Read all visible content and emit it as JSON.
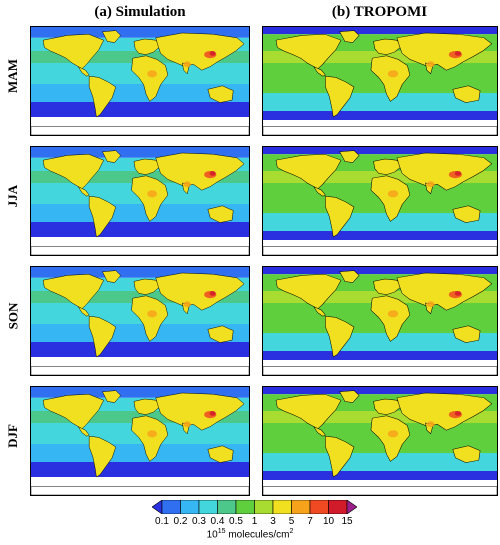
{
  "columns": {
    "a": "(a) Simulation",
    "b": "(b) TROPOMI"
  },
  "rows": [
    {
      "season": "MAM"
    },
    {
      "season": "JJA"
    },
    {
      "season": "SON"
    },
    {
      "season": "DJF"
    }
  ],
  "colorbar": {
    "ticks": [
      "0.1",
      "0.2",
      "0.3",
      "0.4",
      "0.5",
      "1",
      "3",
      "5",
      "7",
      "10",
      "15"
    ],
    "colors": [
      "#2a2fe0",
      "#2f6ff0",
      "#36b6f2",
      "#43d6dc",
      "#4cc98a",
      "#5fcf3d",
      "#a8dc30",
      "#f0e020",
      "#f7a21b",
      "#ef4a22",
      "#d11a2a",
      "#9a1f8a"
    ],
    "unit_base": "10",
    "unit_exp": "15",
    "unit_rest": " molecules/cm",
    "unit_sq": "2"
  }
}
